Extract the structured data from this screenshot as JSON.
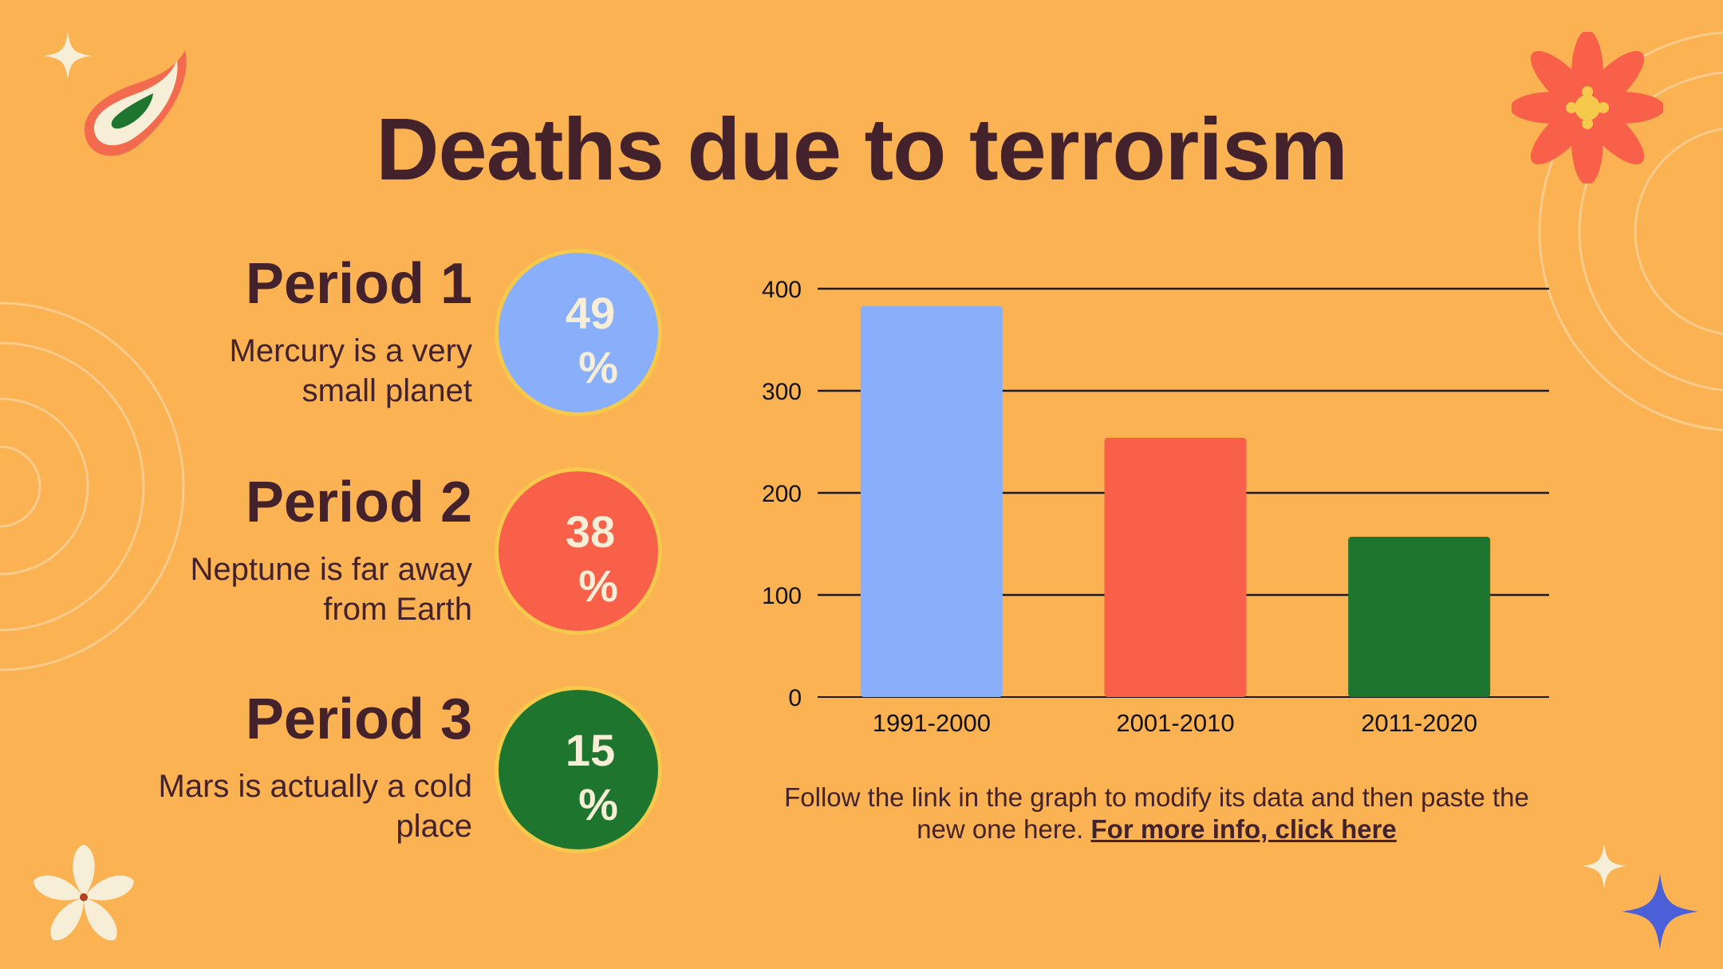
{
  "title": "Deaths due to terrorism",
  "periods": [
    {
      "title": "Period 1",
      "description": "Mercury is a very small planet",
      "value": "49",
      "unit": "%",
      "color": "#8aaffa"
    },
    {
      "title": "Period 2",
      "description": "Neptune is far away from Earth",
      "value": "38",
      "unit": "%",
      "color": "#f8604a"
    },
    {
      "title": "Period 3",
      "description": "Mars is actually a cold place",
      "value": "15",
      "unit": "%",
      "color": "#1e752e"
    }
  ],
  "note": {
    "text": "Follow the link in the graph to modify its data and then paste the new one here.",
    "link": "For more info, click here"
  },
  "chart_data": {
    "type": "bar",
    "categories": [
      "1991-2000",
      "2001-2010",
      "2011-2020"
    ],
    "values": [
      383,
      254,
      157
    ],
    "colors": [
      "#8aaffa",
      "#f8604a",
      "#1e752e"
    ],
    "yticks": [
      0,
      100,
      200,
      300,
      400
    ],
    "ylim": [
      0,
      400
    ],
    "grid": true,
    "legend": "none",
    "xlabel": "",
    "ylabel": ""
  },
  "colors": {
    "background": "#fab252",
    "text": "#43222c",
    "badge_text": "#f6eed7",
    "badge_ring": "#f6c84c"
  }
}
